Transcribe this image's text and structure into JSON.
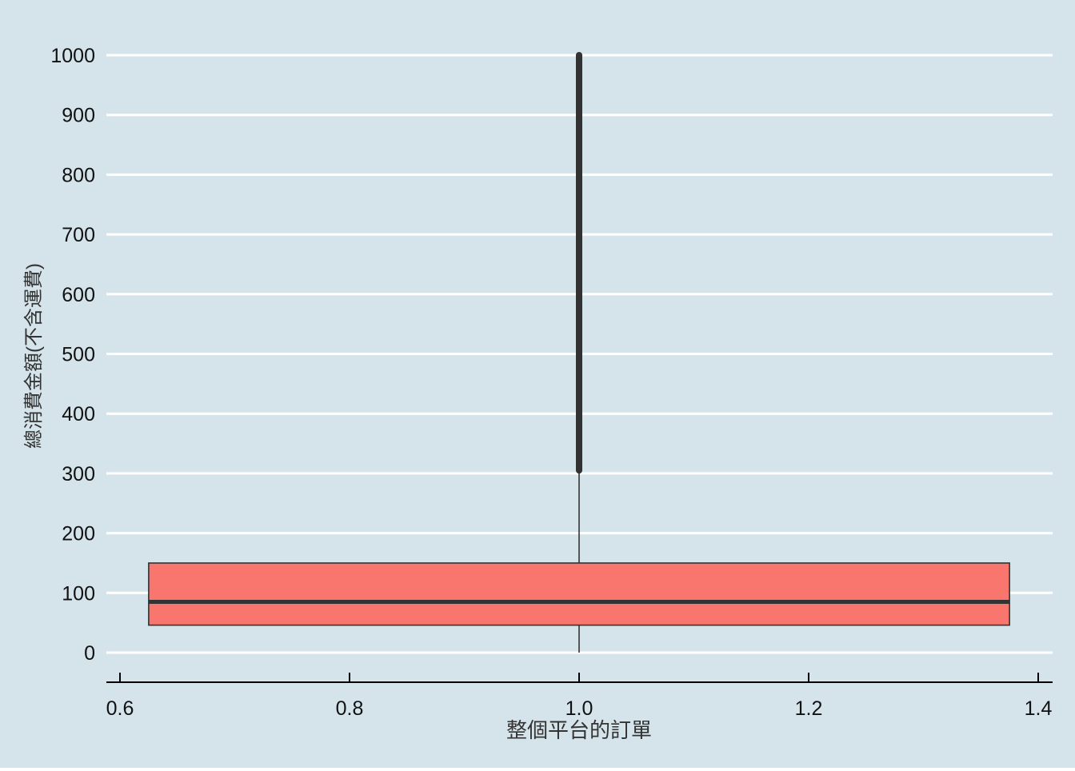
{
  "chart_data": {
    "type": "boxplot",
    "title": "",
    "xlabel": "整個平台的訂單",
    "ylabel": "總消費金額(不含運費)",
    "xlim": [
      0.6,
      1.4
    ],
    "ylim": [
      0,
      1000
    ],
    "x_ticks": [
      "0.6",
      "0.8",
      "1.0",
      "1.2",
      "1.4"
    ],
    "y_ticks": [
      "0",
      "100",
      "200",
      "300",
      "400",
      "500",
      "600",
      "700",
      "800",
      "900",
      "1000"
    ],
    "grid": "horizontal major lines",
    "box": {
      "x_center": 1.0,
      "x_range": [
        0.625,
        1.375
      ],
      "min": 0,
      "q1": 46,
      "median": 85,
      "q3": 150,
      "whisker_high": 305,
      "outliers_range": [
        305,
        1000
      ]
    },
    "colors": {
      "background": "#d5e4eb",
      "grid": "#ffffff",
      "box_fill": "#f8766d",
      "box_line": "#333333",
      "axis": "#000000"
    }
  }
}
